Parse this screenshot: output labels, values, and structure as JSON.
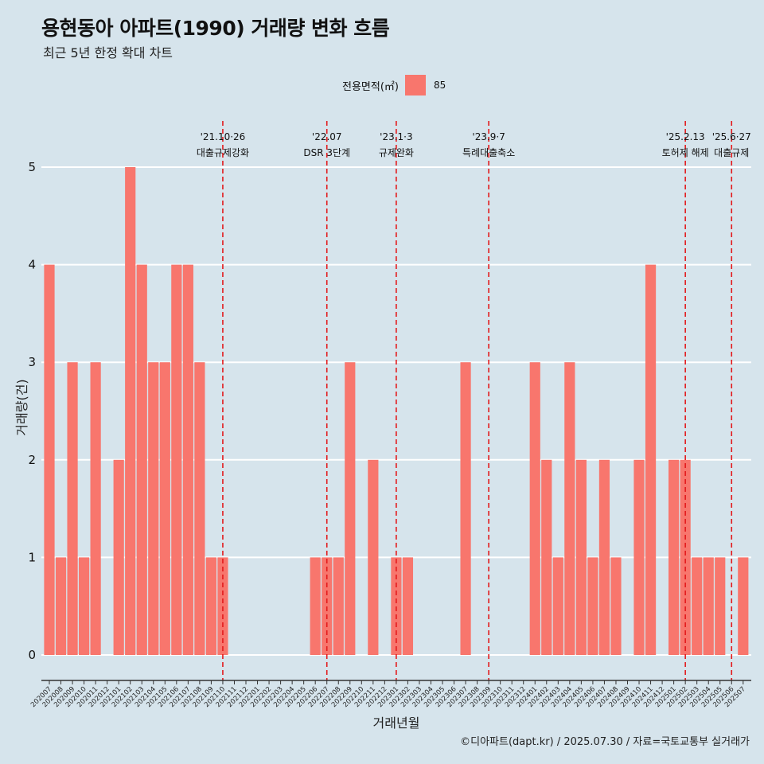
{
  "title": "용현동아 아파트(1990) 거래량 변화 흐름",
  "subtitle": "최근 5년 한정 확대 차트",
  "caption": "©디아파트(dapt.kr) / 2025.07.30 / 자료=국토교통부 실거래가",
  "legend": {
    "title": "전용면적(㎡)",
    "label": "85",
    "color": "#f8766d"
  },
  "colors": {
    "background": "#d6e4ec",
    "bar": "#f8766d",
    "event_line": "#e31a1c",
    "grid": "#ffffff"
  },
  "chart_data": {
    "type": "bar",
    "xlabel": "거래년월",
    "ylabel": "거래량(건)",
    "ylim": [
      0,
      5
    ],
    "yticks": [
      0,
      1,
      2,
      3,
      4,
      5
    ],
    "grid": true,
    "legend_position": "top",
    "categories": [
      "202007",
      "202008",
      "202009",
      "202010",
      "202011",
      "202012",
      "202101",
      "202102",
      "202103",
      "202104",
      "202105",
      "202106",
      "202107",
      "202108",
      "202109",
      "202110",
      "202111",
      "202112",
      "202201",
      "202202",
      "202203",
      "202204",
      "202205",
      "202206",
      "202207",
      "202208",
      "202209",
      "202210",
      "202211",
      "202212",
      "202301",
      "202302",
      "202303",
      "202304",
      "202305",
      "202306",
      "202307",
      "202308",
      "202309",
      "202310",
      "202311",
      "202312",
      "202401",
      "202402",
      "202403",
      "202404",
      "202405",
      "202406",
      "202407",
      "202408",
      "202409",
      "202410",
      "202411",
      "202412",
      "202501",
      "202502",
      "202503",
      "202504",
      "202505",
      "202506",
      "202507"
    ],
    "series": [
      {
        "name": "85",
        "values": [
          4,
          1,
          3,
          1,
          3,
          0,
          2,
          5,
          4,
          3,
          3,
          4,
          4,
          3,
          1,
          1,
          0,
          0,
          0,
          0,
          0,
          0,
          0,
          1,
          1,
          1,
          3,
          0,
          2,
          0,
          1,
          1,
          0,
          0,
          0,
          0,
          3,
          0,
          0,
          0,
          0,
          0,
          3,
          2,
          1,
          3,
          2,
          1,
          2,
          1,
          0,
          2,
          4,
          0,
          2,
          2,
          1,
          1,
          1,
          0,
          1
        ]
      }
    ],
    "annotations": [
      {
        "x": "202110",
        "date": "'21.10·26",
        "text": "대출규제강화"
      },
      {
        "x": "202207",
        "date": "'22.07",
        "text": "DSR 3단계"
      },
      {
        "x": "202301",
        "date": "'23.1·3",
        "text": "규제완화"
      },
      {
        "x": "202309",
        "date": "'23.9·7",
        "text": "특례대출축소"
      },
      {
        "x": "202502",
        "date": "'25.2.13",
        "text": "토허제 해제"
      },
      {
        "x": "202506",
        "date": "'25.6·27",
        "text": "대출규제"
      }
    ]
  }
}
